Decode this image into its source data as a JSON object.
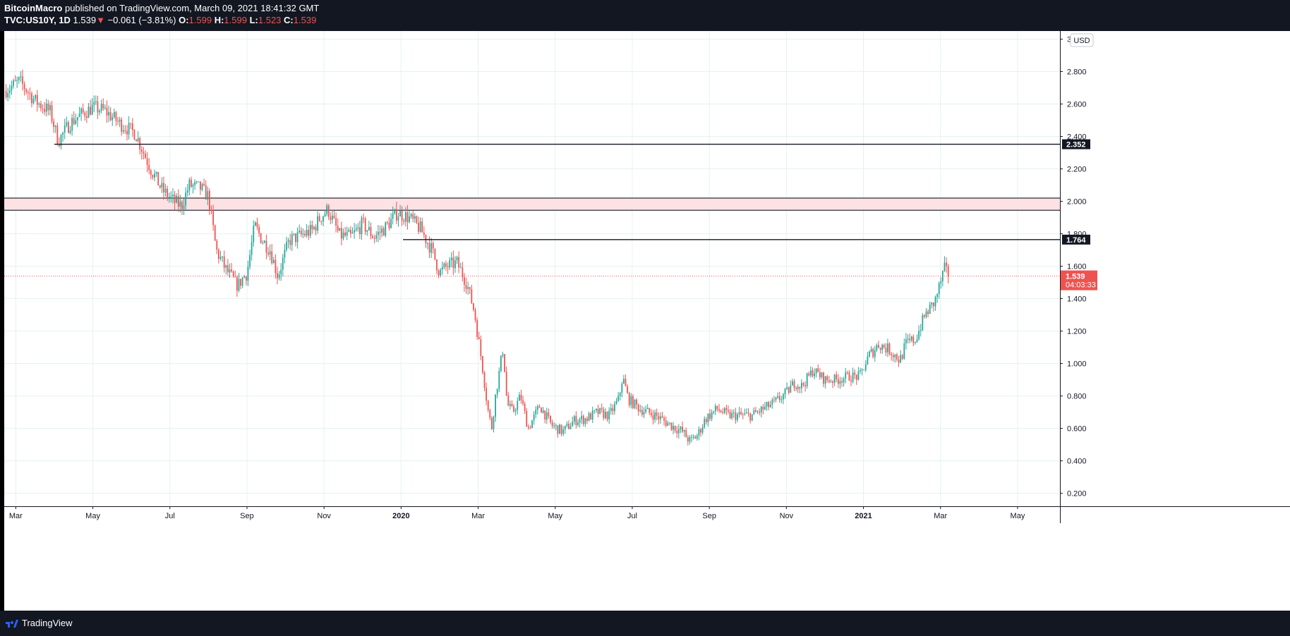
{
  "header": {
    "publisher": "BitcoinMacro",
    "published_text": "published on TradingView.com, March 09, 2021 18:41:32 GMT",
    "symbol": "TVC:US10Y, 1D",
    "last": "1.539",
    "change": "−0.061 (−3.81%)",
    "o_label": "O:",
    "o_value": "1.599",
    "h_label": "H:",
    "h_value": "1.599",
    "l_label": "L:",
    "l_value": "1.523",
    "c_label": "C:",
    "c_value": "1.539"
  },
  "footer": {
    "brand": "TradingView"
  },
  "colors": {
    "up": "#26a69a",
    "down": "#ef5350",
    "zone": "#fde2e4",
    "grid": "#e6f0f0"
  },
  "chart_data": {
    "type": "candlestick",
    "symbol": "TVC:US10Y",
    "interval": "1D",
    "currency": "USD",
    "y_ticks": [
      "0.200",
      "0.400",
      "0.600",
      "0.800",
      "1.000",
      "1.200",
      "1.400",
      "1.600",
      "1.800",
      "2.000",
      "2.200",
      "2.400",
      "2.600",
      "2.800",
      "3"
    ],
    "ylim": [
      0.12,
      3.05
    ],
    "x_ticks": [
      {
        "label": "Mar",
        "month": 0,
        "bold": false
      },
      {
        "label": "May",
        "month": 2,
        "bold": false
      },
      {
        "label": "Jul",
        "month": 4,
        "bold": false
      },
      {
        "label": "Sep",
        "month": 6,
        "bold": false
      },
      {
        "label": "Nov",
        "month": 8,
        "bold": false
      },
      {
        "label": "2020",
        "month": 10,
        "bold": true
      },
      {
        "label": "Mar",
        "month": 12,
        "bold": false
      },
      {
        "label": "May",
        "month": 14,
        "bold": false
      },
      {
        "label": "Jul",
        "month": 16,
        "bold": false
      },
      {
        "label": "Sep",
        "month": 18,
        "bold": false
      },
      {
        "label": "Nov",
        "month": 20,
        "bold": false
      },
      {
        "label": "2021",
        "month": 22,
        "bold": true
      },
      {
        "label": "Mar",
        "month": 24,
        "bold": false
      },
      {
        "label": "May",
        "month": 26,
        "bold": false
      }
    ],
    "xlim_months": [
      -0.3,
      27.1
    ],
    "price_path": [
      [
        -0.3,
        2.68
      ],
      [
        0.1,
        2.74
      ],
      [
        0.5,
        2.62
      ],
      [
        0.9,
        2.55
      ],
      [
        1.1,
        2.37
      ],
      [
        1.4,
        2.48
      ],
      [
        1.6,
        2.52
      ],
      [
        2.0,
        2.58
      ],
      [
        2.3,
        2.56
      ],
      [
        2.7,
        2.48
      ],
      [
        3.1,
        2.42
      ],
      [
        3.5,
        2.2
      ],
      [
        3.8,
        2.07
      ],
      [
        4.1,
        2.0
      ],
      [
        4.3,
        1.97
      ],
      [
        4.5,
        2.1
      ],
      [
        4.8,
        2.08
      ],
      [
        5.0,
        2.03
      ],
      [
        5.2,
        1.7
      ],
      [
        5.45,
        1.58
      ],
      [
        5.75,
        1.48
      ],
      [
        6.0,
        1.56
      ],
      [
        6.2,
        1.85
      ],
      [
        6.4,
        1.76
      ],
      [
        6.6,
        1.7
      ],
      [
        6.8,
        1.54
      ],
      [
        7.1,
        1.76
      ],
      [
        7.4,
        1.79
      ],
      [
        7.7,
        1.82
      ],
      [
        7.9,
        1.9
      ],
      [
        8.1,
        1.95
      ],
      [
        8.4,
        1.79
      ],
      [
        8.7,
        1.78
      ],
      [
        9.0,
        1.86
      ],
      [
        9.3,
        1.78
      ],
      [
        9.6,
        1.84
      ],
      [
        9.9,
        1.93
      ],
      [
        10.2,
        1.9
      ],
      [
        10.5,
        1.83
      ],
      [
        10.8,
        1.7
      ],
      [
        11.0,
        1.56
      ],
      [
        11.2,
        1.6
      ],
      [
        11.45,
        1.62
      ],
      [
        11.7,
        1.5
      ],
      [
        11.9,
        1.32
      ],
      [
        12.1,
        1.0
      ],
      [
        12.25,
        0.72
      ],
      [
        12.35,
        0.6
      ],
      [
        12.45,
        0.8
      ],
      [
        12.55,
        0.95
      ],
      [
        12.65,
        1.1
      ],
      [
        12.75,
        0.75
      ],
      [
        12.9,
        0.7
      ],
      [
        13.1,
        0.8
      ],
      [
        13.3,
        0.6
      ],
      [
        13.6,
        0.74
      ],
      [
        13.9,
        0.62
      ],
      [
        14.2,
        0.58
      ],
      [
        14.5,
        0.65
      ],
      [
        14.8,
        0.66
      ],
      [
        15.1,
        0.7
      ],
      [
        15.4,
        0.68
      ],
      [
        15.65,
        0.78
      ],
      [
        15.75,
        0.92
      ],
      [
        15.9,
        0.78
      ],
      [
        16.2,
        0.72
      ],
      [
        16.6,
        0.68
      ],
      [
        17.0,
        0.62
      ],
      [
        17.3,
        0.58
      ],
      [
        17.5,
        0.52
      ],
      [
        17.7,
        0.56
      ],
      [
        17.9,
        0.66
      ],
      [
        18.2,
        0.72
      ],
      [
        18.5,
        0.68
      ],
      [
        18.8,
        0.68
      ],
      [
        19.1,
        0.68
      ],
      [
        19.4,
        0.72
      ],
      [
        19.7,
        0.76
      ],
      [
        20.0,
        0.82
      ],
      [
        20.2,
        0.88
      ],
      [
        20.4,
        0.86
      ],
      [
        20.7,
        0.96
      ],
      [
        21.0,
        0.9
      ],
      [
        21.3,
        0.9
      ],
      [
        21.6,
        0.92
      ],
      [
        21.9,
        0.92
      ],
      [
        22.15,
        1.05
      ],
      [
        22.4,
        1.12
      ],
      [
        22.7,
        1.08
      ],
      [
        22.95,
        1.02
      ],
      [
        23.1,
        1.12
      ],
      [
        23.35,
        1.15
      ],
      [
        23.6,
        1.3
      ],
      [
        23.85,
        1.38
      ],
      [
        24.0,
        1.5
      ],
      [
        24.1,
        1.58
      ],
      [
        24.2,
        1.539
      ]
    ],
    "last_price": "1.539",
    "countdown": "04:03:33",
    "levels": [
      {
        "value": "2.352",
        "labeled": true,
        "from_month": 1.0
      },
      {
        "value": "1.764",
        "labeled": true,
        "from_month": 10.05
      }
    ],
    "zone": {
      "top": 2.02,
      "bottom": 1.945
    }
  }
}
